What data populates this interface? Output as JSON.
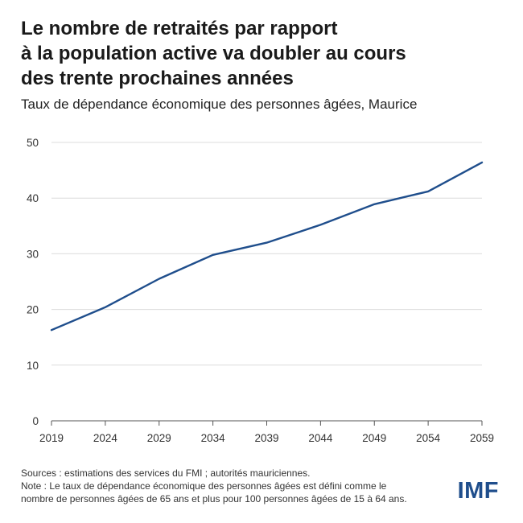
{
  "title_lines": [
    "Le nombre de retraités par rapport",
    "à la population active va doubler au cours",
    "des trente prochaines années"
  ],
  "subtitle": "Taux de dépendance économique des personnes âgées, Maurice",
  "footer": {
    "sources": "Sources : estimations des services du FMI ; autorités mauriciennes.",
    "note_line1": "Note : Le taux de dépendance économique des personnes âgées est défini comme le",
    "note_line2": "nombre de personnes âgées de 65 ans et plus pour 100 personnes âgées de 15 à 64 ans."
  },
  "logo": "IMF",
  "colors": {
    "line": "#1f4e8c",
    "grid": "#dcdcdc",
    "axis": "#555555"
  },
  "chart_data": {
    "type": "line",
    "x": [
      2019,
      2024,
      2029,
      2034,
      2039,
      2044,
      2049,
      2054,
      2059
    ],
    "x_tick_labels": [
      "2019",
      "2024",
      "2029",
      "2034",
      "2039",
      "2044",
      "2049",
      "2054",
      "2059"
    ],
    "y_ticks": [
      0,
      10,
      20,
      30,
      40,
      50
    ],
    "y_tick_labels": [
      "0",
      "10",
      "20",
      "30",
      "40",
      "50"
    ],
    "ylim": [
      0,
      50
    ],
    "xlim": [
      2019,
      2059
    ],
    "grid": "horizontal",
    "series": [
      {
        "values": [
          16.3,
          20.4,
          25.5,
          29.8,
          32.0,
          35.2,
          38.9,
          41.2,
          46.4
        ]
      }
    ]
  }
}
